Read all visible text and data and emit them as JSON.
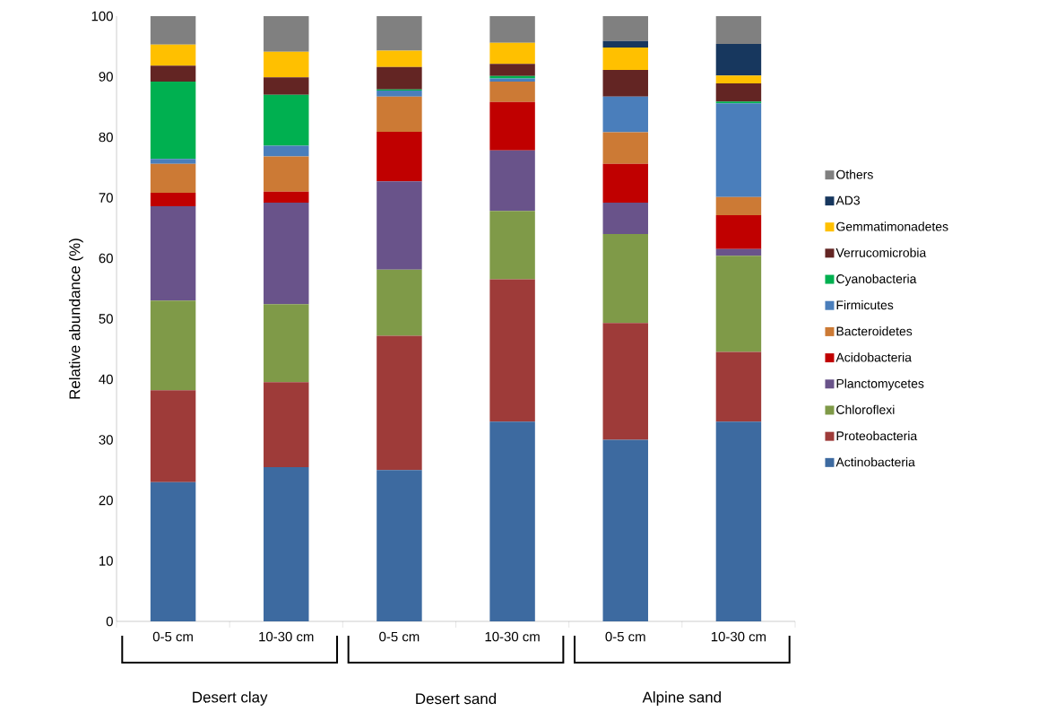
{
  "chart_data": {
    "type": "bar",
    "stacked": true,
    "ylabel": "Relative abundance (%)",
    "categories": [
      "0-5 cm",
      "10-30 cm",
      "0-5 cm",
      "10-30 cm",
      "0-5 cm",
      "10-30 cm"
    ],
    "annotations": [
      "Desert clay",
      "Desert sand",
      "Alpine sand"
    ],
    "ylim": [
      0,
      100
    ],
    "yticks": [
      0,
      10,
      20,
      30,
      40,
      50,
      60,
      70,
      80,
      90,
      100
    ],
    "grid": false,
    "legend": "right",
    "series": [
      {
        "name": "Actinobacteria",
        "color": "#3d6aa0",
        "values": [
          23,
          25.5,
          25,
          33,
          30,
          33
        ]
      },
      {
        "name": "Proteobacteria",
        "color": "#9e3b39",
        "values": [
          15.2,
          14.0,
          22.2,
          23.5,
          19.3,
          11.5
        ]
      },
      {
        "name": "Chloroflexi",
        "color": "#7f9a48",
        "values": [
          14.8,
          12.9,
          10.9,
          11.3,
          14.7,
          15.9
        ]
      },
      {
        "name": "Planctomycetes",
        "color": "#69538a",
        "values": [
          15.6,
          16.8,
          14.6,
          10.0,
          5.2,
          1.1
        ]
      },
      {
        "name": "Acidobacteria",
        "color": "#c00000",
        "values": [
          2.2,
          1.8,
          8.2,
          8.0,
          6.4,
          5.6
        ]
      },
      {
        "name": "Bacteroidetes",
        "color": "#cc7a35",
        "values": [
          4.8,
          5.8,
          5.8,
          3.4,
          5.2,
          3.0
        ]
      },
      {
        "name": "Firmicutes",
        "color": "#4a7ebb",
        "values": [
          0.8,
          1.8,
          1.0,
          0.5,
          5.9,
          15.5
        ]
      },
      {
        "name": "Cyanobacteria",
        "color": "#00b050",
        "values": [
          12.8,
          8.4,
          0.2,
          0.4,
          0,
          0.3
        ]
      },
      {
        "name": "Verrucomicrobia",
        "color": "#632523",
        "values": [
          2.6,
          2.9,
          3.7,
          2.0,
          4.4,
          3.0
        ]
      },
      {
        "name": "Gemmatimonadetes",
        "color": "#ffc000",
        "values": [
          3.5,
          4.2,
          2.7,
          3.5,
          3.7,
          1.3
        ]
      },
      {
        "name": "AD3",
        "color": "#17375e",
        "values": [
          0,
          0,
          0,
          0,
          1.1,
          5.2
        ]
      },
      {
        "name": "Others",
        "color": "#808080",
        "values": [
          4.7,
          5.9,
          5.7,
          4.4,
          4.1,
          4.6
        ]
      }
    ]
  }
}
